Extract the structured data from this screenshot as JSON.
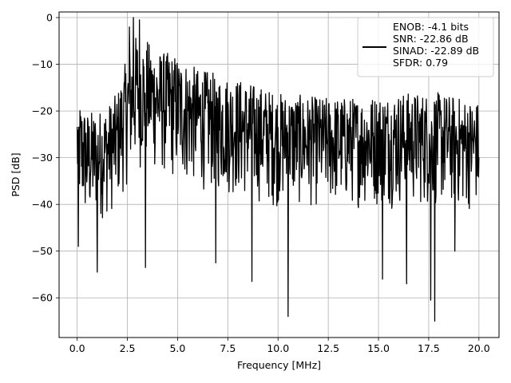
{
  "chart_data": {
    "type": "line",
    "title": "",
    "xlabel": "Frequency [MHz]",
    "ylabel": "PSD [dB]",
    "xlim": [
      -0.9,
      21.0
    ],
    "ylim": [
      -68.5,
      1.2
    ],
    "xticks": [
      0.0,
      2.5,
      5.0,
      7.5,
      10.0,
      12.5,
      15.0,
      17.5,
      20.0
    ],
    "xtick_labels": [
      "0.0",
      "2.5",
      "5.0",
      "7.5",
      "10.0",
      "12.5",
      "15.0",
      "17.5",
      "20.0"
    ],
    "yticks": [
      0,
      -10,
      -20,
      -30,
      -40,
      -50,
      -60
    ],
    "ytick_labels": [
      "0",
      "−10",
      "−20",
      "−30",
      "−40",
      "−50",
      "−60"
    ],
    "grid": true,
    "legend_position": "top-right",
    "series": [
      {
        "name": "ENOB: -4.1 bits\nSNR: -22.86 dB\nSINAD: -22.89 dB\nSFDR: 0.79",
        "color": "#000000",
        "points_per_MHz": 50,
        "envelope": [
          {
            "x": 0.0,
            "upper": -17,
            "lower": -42
          },
          {
            "x": 0.5,
            "upper": -20,
            "lower": -46
          },
          {
            "x": 1.0,
            "upper": -20,
            "lower": -44
          },
          {
            "x": 1.5,
            "upper": -19,
            "lower": -43
          },
          {
            "x": 2.0,
            "upper": -16,
            "lower": -41
          },
          {
            "x": 2.5,
            "upper": -8,
            "lower": -36
          },
          {
            "x": 3.0,
            "upper": -3,
            "lower": -33
          },
          {
            "x": 3.5,
            "upper": -5,
            "lower": -33
          },
          {
            "x": 4.0,
            "upper": -7,
            "lower": -34
          },
          {
            "x": 5.0,
            "upper": -8,
            "lower": -36
          },
          {
            "x": 6.0,
            "upper": -11,
            "lower": -37
          },
          {
            "x": 7.0,
            "upper": -12,
            "lower": -38
          },
          {
            "x": 8.0,
            "upper": -13,
            "lower": -39
          },
          {
            "x": 10.0,
            "upper": -16,
            "lower": -41
          },
          {
            "x": 12.0,
            "upper": -17,
            "lower": -41
          },
          {
            "x": 14.0,
            "upper": -17,
            "lower": -41
          },
          {
            "x": 16.0,
            "upper": -16,
            "lower": -41
          },
          {
            "x": 18.0,
            "upper": -16,
            "lower": -41
          },
          {
            "x": 20.0,
            "upper": -18,
            "lower": -42
          }
        ],
        "notable_peaks": [
          {
            "x": 2.8,
            "y": 0
          },
          {
            "x": 3.1,
            "y": -0.5
          },
          {
            "x": 2.6,
            "y": -2
          },
          {
            "x": 3.4,
            "y": -1.5
          }
        ],
        "notable_dips": [
          {
            "x": 0.05,
            "y": -49
          },
          {
            "x": 1.0,
            "y": -54.5
          },
          {
            "x": 3.4,
            "y": -53.5
          },
          {
            "x": 6.9,
            "y": -52.5
          },
          {
            "x": 8.7,
            "y": -56.5
          },
          {
            "x": 10.5,
            "y": -64
          },
          {
            "x": 15.2,
            "y": -56
          },
          {
            "x": 16.4,
            "y": -57
          },
          {
            "x": 17.6,
            "y": -60.5
          },
          {
            "x": 17.8,
            "y": -65
          },
          {
            "x": 18.8,
            "y": -50
          }
        ]
      }
    ]
  }
}
